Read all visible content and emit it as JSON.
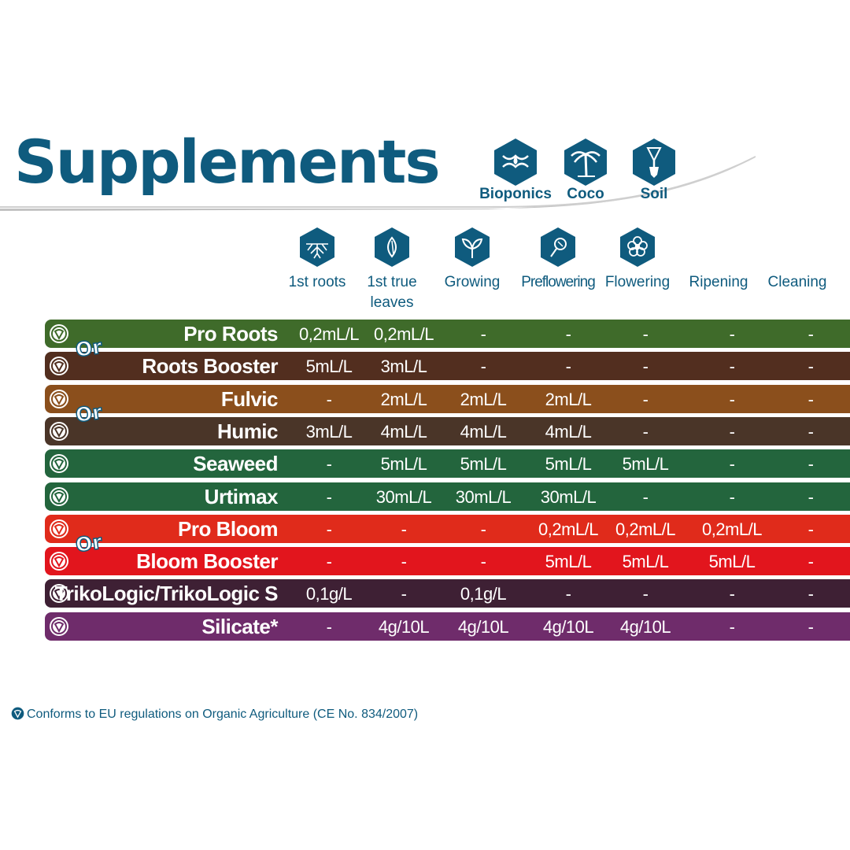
{
  "title": "Supplements",
  "media": [
    {
      "label": "Bioponics",
      "icon": "hands-drop-icon"
    },
    {
      "label": "Coco",
      "icon": "palm-tree-icon"
    },
    {
      "label": "Soil",
      "icon": "shovel-icon"
    }
  ],
  "stages": [
    {
      "label": "1st roots",
      "icon": "roots-icon"
    },
    {
      "label": "1st true leaves",
      "icon": "leaf-icon"
    },
    {
      "label": "Growing",
      "icon": "sprout-icon"
    },
    {
      "label": "Preflowering",
      "icon": "bud-icon"
    },
    {
      "label": "Flowering",
      "icon": "flower-icon"
    },
    {
      "label": "Ripening",
      "icon": ""
    },
    {
      "label": "Cleaning",
      "icon": ""
    }
  ],
  "or_label": "Or",
  "products": [
    {
      "name": "Pro Roots",
      "color": "#3f6b2a",
      "doses": [
        "0,2mL/L",
        "0,2mL/L",
        "-",
        "-",
        "-",
        "-",
        "-"
      ]
    },
    {
      "name": "Roots Booster",
      "color": "#522e1f",
      "doses": [
        "5mL/L",
        "3mL/L",
        "-",
        "-",
        "-",
        "-",
        "-"
      ]
    },
    {
      "name": "Fulvic",
      "color": "#8b4f1c",
      "doses": [
        "-",
        "2mL/L",
        "2mL/L",
        "2mL/L",
        "-",
        "-",
        "-"
      ]
    },
    {
      "name": "Humic",
      "color": "#4a3528",
      "doses": [
        "3mL/L",
        "4mL/L",
        "4mL/L",
        "4mL/L",
        "-",
        "-",
        "-"
      ]
    },
    {
      "name": "Seaweed",
      "color": "#23653d",
      "doses": [
        "-",
        "5mL/L",
        "5mL/L",
        "5mL/L",
        "5mL/L",
        "-",
        "-"
      ]
    },
    {
      "name": "Urtimax",
      "color": "#23653d",
      "doses": [
        "-",
        "30mL/L",
        "30mL/L",
        "30mL/L",
        "-",
        "-",
        "-"
      ]
    },
    {
      "name": "Pro Bloom",
      "color": "#e02b1b",
      "doses": [
        "-",
        "-",
        "-",
        "0,2mL/L",
        "0,2mL/L",
        "0,2mL/L",
        "-"
      ]
    },
    {
      "name": "Bloom Booster",
      "color": "#e2151d",
      "doses": [
        "-",
        "-",
        "-",
        "5mL/L",
        "5mL/L",
        "5mL/L",
        "-"
      ]
    },
    {
      "name": "TrikoLogic/TrikoLogic S",
      "color": "#3e2034",
      "doses": [
        "0,1g/L",
        "-",
        "0,1g/L",
        "-",
        "-",
        "-",
        "-"
      ]
    },
    {
      "name": "Silicate*",
      "color": "#6f2c6b",
      "doses": [
        "-",
        "4g/10L",
        "4g/10L",
        "4g/10L",
        "4g/10L",
        "-",
        "-"
      ]
    }
  ],
  "footnote": "Conforms to EU regulations on Organic Agriculture (CE No. 834/2007)",
  "colors": {
    "brand": "#0f5b7e"
  }
}
